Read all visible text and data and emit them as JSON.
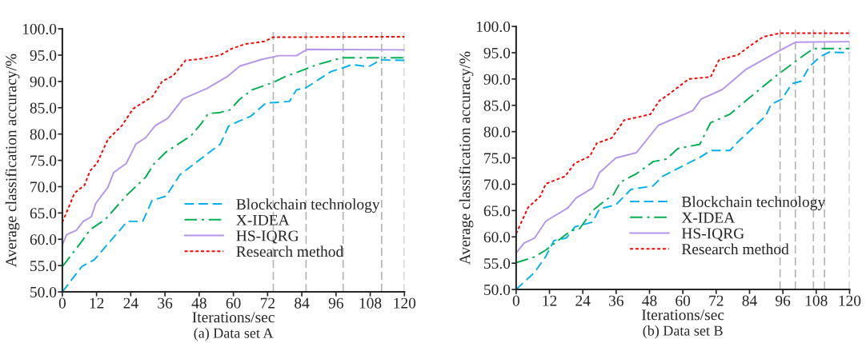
{
  "chart_data": [
    {
      "type": "line",
      "title": "(a) Data set A",
      "xlabel": "Iterations/sec",
      "ylabel": "Average classification accuracy/%",
      "xlim": [
        0,
        120
      ],
      "xticks": [
        0,
        12,
        24,
        36,
        48,
        60,
        72,
        84,
        96,
        108,
        120
      ],
      "ylim": [
        50,
        100
      ],
      "yticks": [
        {
          "value": 50,
          "label": "50.0"
        },
        {
          "value": 55,
          "label": "55.0"
        },
        {
          "value": 60,
          "label": "60.0"
        },
        {
          "value": 65,
          "label": "65.0"
        },
        {
          "value": 70,
          "label": "70.0"
        },
        {
          "value": 75,
          "label": "75.0"
        },
        {
          "value": 80,
          "label": "80.0"
        },
        {
          "value": 85,
          "label": "85.0"
        },
        {
          "value": 90,
          "label": "90.0"
        },
        {
          "value": 95,
          "label": "95.0"
        },
        {
          "value": 100,
          "label": "100.0"
        }
      ],
      "grid": false,
      "legend": "bottom right",
      "marker": "none",
      "ref_lines": [
        {
          "axis": "x",
          "value": 74,
          "color": "#b4b4b4",
          "line_style": "dashed"
        },
        {
          "axis": "x",
          "value": 85.5,
          "color": "#b4b4b4",
          "line_style": "dashed"
        },
        {
          "axis": "x",
          "value": 98.5,
          "color": "#b4b4b4",
          "line_style": "dashed"
        },
        {
          "axis": "x",
          "value": 112,
          "color": "#b4b4b4",
          "line_style": "dashed"
        },
        {
          "axis": "x",
          "value": 120,
          "color": "#b4b4b4",
          "line_style": "dashed"
        }
      ],
      "series": [
        {
          "name": "Blockchain technology",
          "color": "#00b0f0",
          "line_style": "dashed",
          "x": [
            0,
            6.8,
            11.2,
            22.8,
            28.2,
            31.5,
            36.4,
            41.3,
            49.1,
            55.4,
            58.3,
            62.2,
            66.1,
            71.4,
            74.8,
            79.7,
            82.1,
            85.5,
            94.3,
            98.6,
            101.6,
            107.4,
            111.8,
            120
          ],
          "values": [
            50,
            54.8,
            56.1,
            63.4,
            63.4,
            67.4,
            68.2,
            72.3,
            75.5,
            78.1,
            81.5,
            82.5,
            83.4,
            85.9,
            86.0,
            86.2,
            88.4,
            88.8,
            91.9,
            92.6,
            93.2,
            92.8,
            94.1,
            94.0
          ]
        },
        {
          "name": "X-IDEA",
          "color": "#00b050",
          "line_style": "dashdot",
          "x": [
            0,
            6.8,
            9.7,
            15.1,
            22.8,
            29.2,
            32.1,
            36.4,
            45.2,
            48.6,
            51.2,
            55.4,
            58.8,
            62.2,
            66.6,
            73.9,
            77.7,
            85.5,
            89.4,
            98.2,
            120
          ],
          "values": [
            54.8,
            59.6,
            61.8,
            63.8,
            68.5,
            71.8,
            74.3,
            76.6,
            79.7,
            81.9,
            83.9,
            84.1,
            84.6,
            86.6,
            88.4,
            89.8,
            90.8,
            92.4,
            93.2,
            94.5,
            94.5
          ]
        },
        {
          "name": "HS-IQRG",
          "color": "#b496eb",
          "line_style": "solid",
          "x": [
            0,
            1.5,
            4.9,
            7.3,
            10.2,
            11.7,
            16.0,
            18.0,
            22.4,
            25.8,
            29.2,
            32.6,
            37.0,
            42.3,
            50.5,
            57.8,
            62.2,
            70.0,
            76.0,
            82.1,
            86.0,
            120
          ],
          "values": [
            58.9,
            60.9,
            61.7,
            63.4,
            64.3,
            66.8,
            69.9,
            72.7,
            74.4,
            78.1,
            79.3,
            81.6,
            83.0,
            86.7,
            88.6,
            90.9,
            92.9,
            94.2,
            94.9,
            94.9,
            96.1,
            96.0
          ]
        },
        {
          "name": "Research method",
          "color": "#ff0000",
          "line_style": "dotted",
          "x": [
            0,
            4.3,
            7.8,
            9.7,
            12.2,
            16.0,
            20.9,
            24.8,
            29.2,
            31.6,
            35.0,
            38.9,
            43.2,
            47.6,
            55.4,
            59.3,
            64.1,
            70.9,
            73.9,
            120
          ],
          "values": [
            63.2,
            68.8,
            70.3,
            73.0,
            74.5,
            79.0,
            81.6,
            84.8,
            86.3,
            87.1,
            90.0,
            91.1,
            94.0,
            94.2,
            95.0,
            96.2,
            97.1,
            97.6,
            98.4,
            98.5
          ]
        }
      ]
    },
    {
      "type": "line",
      "title": "(b) Data set B",
      "xlabel": "Iterations/sec",
      "ylabel": "Average classification accuracy/%",
      "xlim": [
        0,
        120
      ],
      "xticks": [
        0,
        12,
        24,
        36,
        48,
        60,
        72,
        84,
        96,
        108,
        120
      ],
      "ylim": [
        50,
        100
      ],
      "yticks": [
        {
          "value": 50,
          "label": "50.0"
        },
        {
          "value": 55,
          "label": "55.0"
        },
        {
          "value": 60,
          "label": "60.0"
        },
        {
          "value": 65,
          "label": "65.0"
        },
        {
          "value": 70,
          "label": "70.0"
        },
        {
          "value": 75,
          "label": "75.0"
        },
        {
          "value": 80,
          "label": "80.0"
        },
        {
          "value": 85,
          "label": "85.0"
        },
        {
          "value": 90,
          "label": "90.0"
        },
        {
          "value": 95,
          "label": "95.0"
        },
        {
          "value": 100,
          "label": "100.0"
        }
      ],
      "grid": false,
      "legend": "bottom right",
      "marker": "none",
      "ref_lines": [
        {
          "axis": "x",
          "value": 95,
          "color": "#b4b4b4",
          "line_style": "dashed"
        },
        {
          "axis": "x",
          "value": 100.5,
          "color": "#b4b4b4",
          "line_style": "dashed"
        },
        {
          "axis": "x",
          "value": 107,
          "color": "#b4b4b4",
          "line_style": "dashed"
        },
        {
          "axis": "x",
          "value": 111,
          "color": "#b4b4b4",
          "line_style": "dashed"
        },
        {
          "axis": "x",
          "value": 120,
          "color": "#b4b4b4",
          "line_style": "dashed"
        }
      ],
      "series": [
        {
          "name": "Blockchain technology",
          "color": "#00b0f0",
          "line_style": "dashed",
          "x": [
            0,
            6.7,
            10.7,
            13.6,
            18.1,
            21.1,
            27.5,
            30.0,
            35.9,
            41.3,
            49.3,
            52.7,
            60.1,
            66.1,
            70.0,
            76.9,
            79.9,
            83.4,
            89.8,
            91.8,
            95.7,
            99.2,
            102.6,
            105.6,
            109.6,
            112.6,
            120
          ],
          "values": [
            50,
            53.3,
            56.3,
            59.3,
            59.8,
            61.9,
            62.8,
            65.3,
            66.1,
            69.0,
            69.7,
            71.5,
            73.5,
            75.1,
            76.4,
            76.4,
            78.1,
            79.8,
            83.0,
            85.2,
            86.2,
            89.1,
            89.6,
            92.4,
            94.3,
            95.1,
            95.0
          ]
        },
        {
          "name": "X-IDEA",
          "color": "#00b050",
          "line_style": "dashdot",
          "x": [
            0,
            6.2,
            10.7,
            19.5,
            22.9,
            27.5,
            31.5,
            35.0,
            37.5,
            43.3,
            49.3,
            54.2,
            58.2,
            66.1,
            70.0,
            76.9,
            83.9,
            93.8,
            102.7,
            107.1,
            120
          ],
          "values": [
            55.1,
            56.1,
            57.5,
            61.1,
            61.6,
            65.0,
            66.7,
            68.0,
            70.4,
            72.0,
            74.3,
            74.8,
            76.8,
            77.6,
            81.7,
            83.3,
            86.4,
            90.7,
            94.2,
            95.8,
            95.8
          ]
        },
        {
          "name": "HS-IQRG",
          "color": "#b496eb",
          "line_style": "solid",
          "x": [
            0,
            2.8,
            6.7,
            10.7,
            18.6,
            21.6,
            27.5,
            30.0,
            35.9,
            43.3,
            51.2,
            63.6,
            66.6,
            74.2,
            82.9,
            94.8,
            100.5,
            120
          ],
          "values": [
            56.9,
            58.8,
            59.8,
            63.0,
            65.5,
            67.4,
            69.3,
            72.2,
            75.0,
            76.0,
            81.2,
            84.0,
            86.2,
            88.0,
            91.9,
            95.4,
            97.0,
            97.1
          ]
        },
        {
          "name": "Research method",
          "color": "#ff0000",
          "line_style": "dotted",
          "x": [
            0,
            4.3,
            8.7,
            10.7,
            17.6,
            21.1,
            26.5,
            29.0,
            34.4,
            38.9,
            43.3,
            48.3,
            51.6,
            55.2,
            62.1,
            70.0,
            73.0,
            79.9,
            82.9,
            88.8,
            94.8,
            120
          ],
          "values": [
            60.6,
            65.6,
            67.7,
            70.1,
            71.5,
            74.0,
            75.3,
            77.8,
            78.8,
            82.2,
            82.7,
            83.3,
            85.9,
            87.2,
            90.0,
            90.4,
            93.6,
            94.6,
            95.8,
            98.0,
            98.7,
            98.7
          ]
        }
      ]
    }
  ]
}
